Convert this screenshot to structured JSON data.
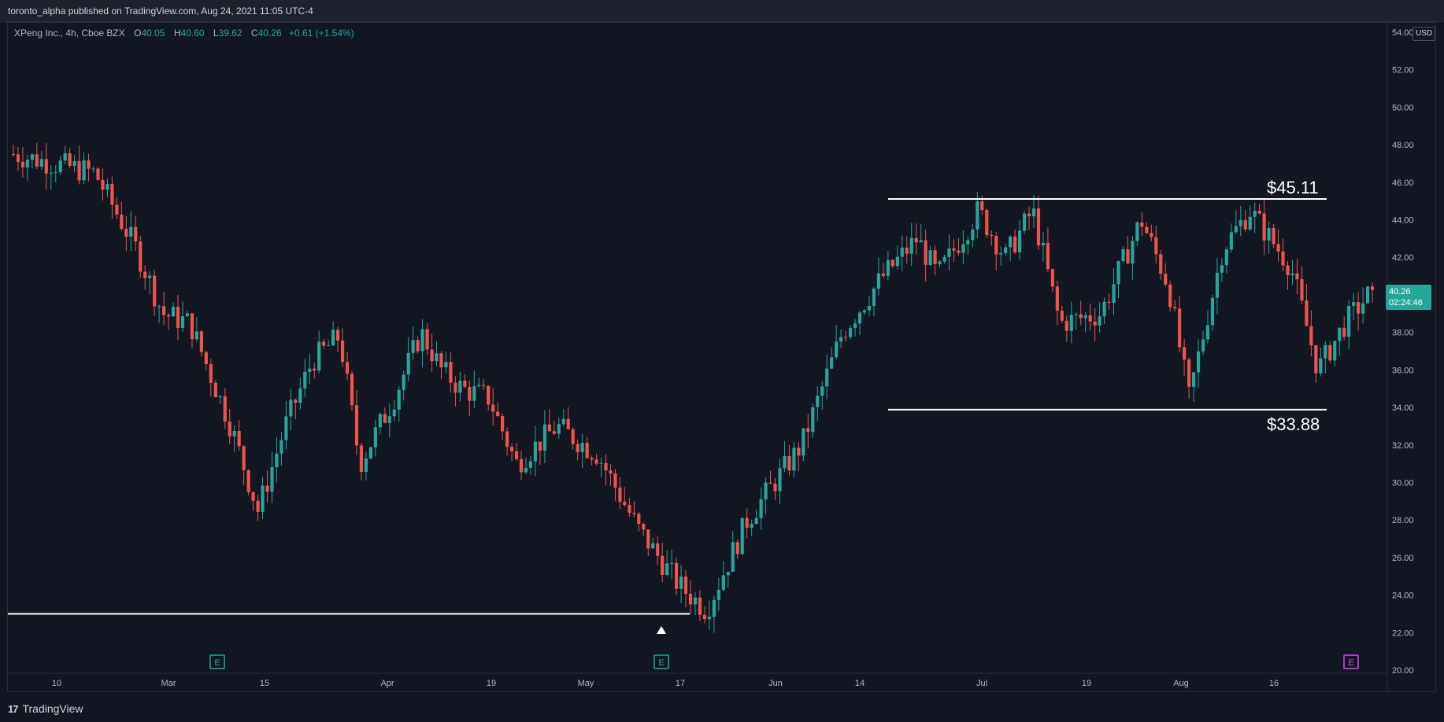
{
  "header": {
    "publisher_line": "toronto_alpha published on TradingView.com, Aug 24, 2021 11:05 UTC-4"
  },
  "legend": {
    "symbol": "XPeng Inc., 4h, Cboe BZX",
    "open_label": "O",
    "open": "40.05",
    "high_label": "H",
    "high": "40.60",
    "low_label": "L",
    "low": "39.62",
    "close_label": "C",
    "close": "40.26",
    "change": "+0.61 (+1.54%)"
  },
  "price_scale": {
    "currency": "USD",
    "last_price": "40.26",
    "countdown": "02:24:46"
  },
  "footer": {
    "brand": "TradingView",
    "brand_glyph": "17"
  },
  "annotations": {
    "resistance_label": "$45.11",
    "support_label": "$33.88"
  },
  "colors": {
    "background": "#131722",
    "up": "#26a69a",
    "down": "#ef5350",
    "grid_text": "#b2b5be",
    "line": "#ffffff",
    "earnings_icon": "#26a69a",
    "earnings_upcoming": "#e040fb"
  },
  "icons": {
    "earnings": "E",
    "marker": "triangle-up-icon"
  },
  "chart_data": {
    "type": "candlestick",
    "title": "XPeng Inc., 4h, Cboe BZX",
    "ylim": [
      20,
      54
    ],
    "y_ticks": [
      "54.00",
      "52.00",
      "50.00",
      "48.00",
      "46.00",
      "44.00",
      "42.00",
      "40.00",
      "38.00",
      "36.00",
      "34.00",
      "32.00",
      "30.00",
      "28.00",
      "26.00",
      "24.00",
      "22.00",
      "20.00"
    ],
    "x_ticks": [
      "10",
      "Mar",
      "15",
      "Apr",
      "19",
      "May",
      "17",
      "Jun",
      "14",
      "Jul",
      "19",
      "Aug",
      "16"
    ],
    "grid": false,
    "close_path": [
      {
        "t": 0.0,
        "p": 47.5
      },
      {
        "t": 0.03,
        "p": 47.0
      },
      {
        "t": 0.06,
        "p": 46.5
      },
      {
        "t": 0.09,
        "p": 42.5
      },
      {
        "t": 0.11,
        "p": 39.0
      },
      {
        "t": 0.13,
        "p": 38.5
      },
      {
        "t": 0.16,
        "p": 33.0
      },
      {
        "t": 0.18,
        "p": 28.5
      },
      {
        "t": 0.2,
        "p": 33.0
      },
      {
        "t": 0.22,
        "p": 36.5
      },
      {
        "t": 0.24,
        "p": 37.8
      },
      {
        "t": 0.255,
        "p": 31.0
      },
      {
        "t": 0.28,
        "p": 34.5
      },
      {
        "t": 0.3,
        "p": 38.0
      },
      {
        "t": 0.315,
        "p": 36.0
      },
      {
        "t": 0.33,
        "p": 35.0
      },
      {
        "t": 0.35,
        "p": 34.5
      },
      {
        "t": 0.37,
        "p": 31.0
      },
      {
        "t": 0.4,
        "p": 33.0
      },
      {
        "t": 0.43,
        "p": 31.5
      },
      {
        "t": 0.46,
        "p": 27.5
      },
      {
        "t": 0.49,
        "p": 24.5
      },
      {
        "t": 0.51,
        "p": 23.2
      },
      {
        "t": 0.54,
        "p": 28.0
      },
      {
        "t": 0.58,
        "p": 32.0
      },
      {
        "t": 0.61,
        "p": 38.0
      },
      {
        "t": 0.64,
        "p": 41.0
      },
      {
        "t": 0.665,
        "p": 43.0
      },
      {
        "t": 0.68,
        "p": 41.0
      },
      {
        "t": 0.71,
        "p": 44.5
      },
      {
        "t": 0.73,
        "p": 42.0
      },
      {
        "t": 0.75,
        "p": 44.5
      },
      {
        "t": 0.77,
        "p": 38.5
      },
      {
        "t": 0.8,
        "p": 39.0
      },
      {
        "t": 0.83,
        "p": 44.0
      },
      {
        "t": 0.85,
        "p": 40.5
      },
      {
        "t": 0.865,
        "p": 34.5
      },
      {
        "t": 0.89,
        "p": 42.5
      },
      {
        "t": 0.91,
        "p": 44.5
      },
      {
        "t": 0.94,
        "p": 41.5
      },
      {
        "t": 0.96,
        "p": 36.0
      },
      {
        "t": 0.98,
        "p": 38.5
      },
      {
        "t": 1.0,
        "p": 40.26
      }
    ],
    "levels": [
      {
        "label": "$45.11",
        "value": 45.11
      },
      {
        "label": "$33.88",
        "value": 33.88
      },
      {
        "label": "",
        "value": 23.0
      }
    ]
  }
}
